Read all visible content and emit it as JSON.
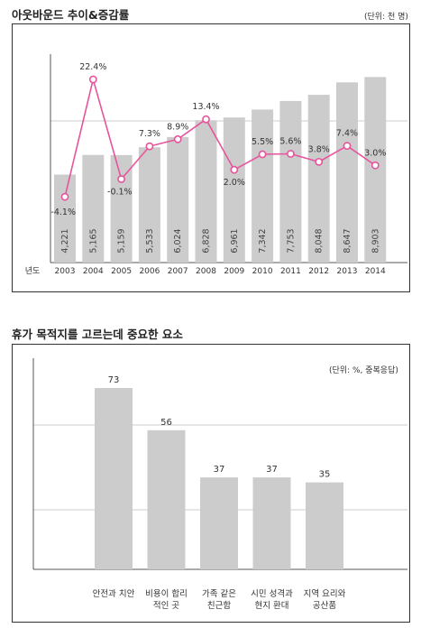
{
  "chart1": {
    "title": "아웃바운드 추이&증감률",
    "unit": "(단위: 천 명)",
    "x_prefix": "년도",
    "colors": {
      "bar": "#cccccc",
      "line": "#e8539b",
      "axis": "#555555",
      "grid": "#999999"
    },
    "chart_data": {
      "type": "bar",
      "categories": [
        "2003",
        "2004",
        "2005",
        "2006",
        "2007",
        "2008",
        "2009",
        "2010",
        "2011",
        "2012",
        "2013",
        "2014"
      ],
      "series": [
        {
          "values": [
            4221,
            5165,
            5159,
            5533,
            6024,
            6828,
            6961,
            7342,
            7753,
            8048,
            8647,
            8903
          ]
        },
        {
          "type": "line",
          "values": [
            -4.1,
            22.4,
            -0.1,
            7.3,
            8.9,
            13.4,
            2.0,
            5.5,
            5.6,
            3.8,
            7.4,
            3.0
          ]
        }
      ],
      "bar_labels": [
        "4,221",
        "5,165",
        "5,159",
        "5,533",
        "6,024",
        "6,828",
        "6,961",
        "7,342",
        "7,753",
        "8,048",
        "8,647",
        "8,903"
      ],
      "line_labels": [
        "-4.1%",
        "22.4%",
        "-0.1%",
        "7.3%",
        "8.9%",
        "13.4%",
        "2.0%",
        "5.5%",
        "5.6%",
        "3.8%",
        "7.4%",
        "3.0%"
      ]
    }
  },
  "chart2": {
    "title": "휴가 목적지를 고르는데 중요한 요소",
    "unit": "(단위: %, 중복응답)",
    "colors": {
      "bar": "#cccccc",
      "axis": "#555555",
      "grid": "#999999"
    },
    "chart_data": {
      "type": "bar",
      "categories": [
        [
          "안전과 치안"
        ],
        [
          "비용이 합리",
          "적인 곳"
        ],
        [
          "가족 같은",
          "친근함"
        ],
        [
          "시민 성격과",
          "현지 환대"
        ],
        [
          "지역 요리와",
          "공산품"
        ]
      ],
      "values": [
        73,
        56,
        37,
        37,
        35
      ]
    }
  }
}
